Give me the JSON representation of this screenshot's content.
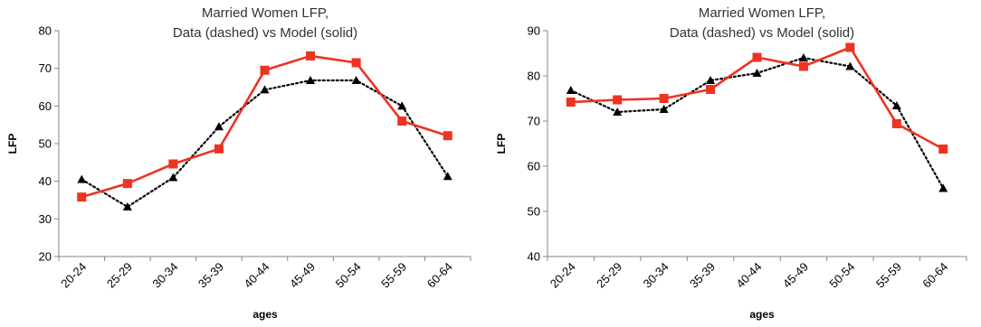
{
  "chart_data": [
    {
      "type": "line",
      "title": [
        "Married Women LFP,",
        "Data (dashed) vs Model (solid)"
      ],
      "xlabel": "ages",
      "ylabel": "LFP",
      "categories": [
        "20-24",
        "25-29",
        "30-34",
        "35-39",
        "40-44",
        "45-49",
        "50-54",
        "55-59",
        "60-64"
      ],
      "ylim": [
        20,
        80
      ],
      "yticks": [
        20,
        30,
        40,
        50,
        60,
        70,
        80
      ],
      "grid": false,
      "legend": "none",
      "series": [
        {
          "style": "dotted",
          "marker": "triangle",
          "color": "#000000",
          "values": [
            40.5,
            33.2,
            41.0,
            54.5,
            64.3,
            66.8,
            66.8,
            60.0,
            41.3
          ]
        },
        {
          "style": "solid",
          "marker": "square",
          "color": "#ee3322",
          "values": [
            35.8,
            39.4,
            44.6,
            48.6,
            69.5,
            73.3,
            71.5,
            56.0,
            52.1
          ]
        }
      ]
    },
    {
      "type": "line",
      "title": [
        "Married Women LFP,",
        "Data (dashed) vs Model (solid)"
      ],
      "xlabel": "ages",
      "ylabel": "LFP",
      "categories": [
        "20-24",
        "25-29",
        "30-34",
        "35-39",
        "40-44",
        "45-49",
        "50-54",
        "55-59",
        "60-64"
      ],
      "ylim": [
        40,
        90
      ],
      "yticks": [
        40,
        50,
        60,
        70,
        80,
        90
      ],
      "grid": false,
      "legend": "none",
      "series": [
        {
          "style": "dotted",
          "marker": "triangle",
          "color": "#000000",
          "values": [
            76.8,
            72.0,
            72.6,
            79.0,
            80.6,
            84.0,
            82.1,
            73.4,
            55.1
          ]
        },
        {
          "style": "solid",
          "marker": "square",
          "color": "#ee3322",
          "values": [
            74.2,
            74.7,
            75.0,
            77.0,
            84.1,
            82.1,
            86.3,
            69.4,
            63.8
          ]
        }
      ]
    }
  ]
}
